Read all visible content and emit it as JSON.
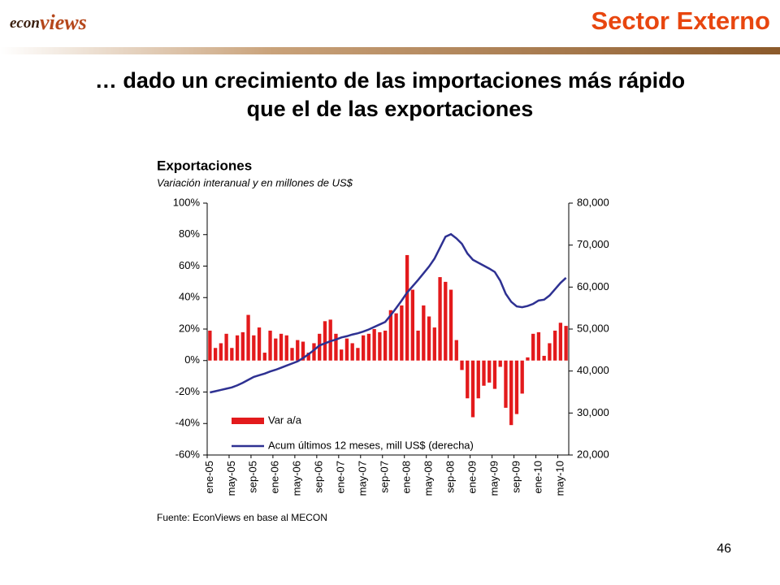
{
  "slide": {
    "logo": [
      "econ",
      "views"
    ],
    "section": "Sector Externo",
    "headline": [
      "… dado un crecimiento de las importaciones más rápido",
      "que el de las exportaciones"
    ],
    "page_number": "46"
  },
  "chart_data": {
    "type": "bar",
    "title": "Exportaciones",
    "subtitle": "Variación interanual y en millones de US$",
    "source": "Fuente: EconViews en base al MECON",
    "categories": [
      "ene-05",
      null,
      null,
      null,
      "may-05",
      null,
      null,
      null,
      "sep-05",
      null,
      null,
      null,
      "ene-06",
      null,
      null,
      null,
      "may-06",
      null,
      null,
      null,
      "sep-06",
      null,
      null,
      null,
      "ene-07",
      null,
      null,
      null,
      "may-07",
      null,
      null,
      null,
      "sep-07",
      null,
      null,
      null,
      "ene-08",
      null,
      null,
      null,
      "may-08",
      null,
      null,
      null,
      "sep-08",
      null,
      null,
      null,
      "ene-09",
      null,
      null,
      null,
      "may-09",
      null,
      null,
      null,
      "sep-09",
      null,
      null,
      null,
      "ene-10",
      null,
      null,
      null,
      "may-10",
      null
    ],
    "series": [
      {
        "name": "Var a/a",
        "type": "bar",
        "color": "#e31a1c",
        "values": [
          19,
          8,
          11,
          17,
          8,
          16,
          18,
          29,
          16,
          21,
          5,
          19,
          14,
          17,
          16,
          8,
          13,
          12,
          5,
          11,
          17,
          25,
          26,
          17,
          7,
          14,
          11,
          8,
          16,
          17,
          20,
          18,
          19,
          32,
          30,
          35,
          67,
          45,
          19,
          35,
          28,
          21,
          53,
          50,
          45,
          13,
          -6,
          -24,
          -36,
          -24,
          -16,
          -14,
          -18,
          -4,
          -30,
          -41,
          -34,
          -21,
          2,
          17,
          18,
          3,
          11,
          19,
          24,
          22
        ]
      },
      {
        "name": "Acum últimos 12 meses, mill US$ (derecha)",
        "type": "line",
        "axis": "y2",
        "color": "#2e3192",
        "values": [
          34900,
          35200,
          35500,
          35800,
          36100,
          36600,
          37200,
          37900,
          38600,
          39000,
          39400,
          39900,
          40300,
          40800,
          41300,
          41800,
          42300,
          43100,
          44000,
          45000,
          46100,
          46600,
          47100,
          47500,
          48000,
          48300,
          48700,
          49000,
          49400,
          49900,
          50500,
          51100,
          51700,
          53300,
          55000,
          56800,
          58700,
          60200,
          61700,
          63300,
          64900,
          66800,
          69400,
          72000,
          72600,
          71600,
          70300,
          68000,
          66500,
          65800,
          65100,
          64400,
          63600,
          61500,
          58400,
          56500,
          55400,
          55200,
          55500,
          56000,
          56800,
          57000,
          58000,
          59500,
          61000,
          62200
        ]
      }
    ],
    "ylim": [
      -60,
      100
    ],
    "yticks": [
      {
        "value": -60,
        "label": "-60%"
      },
      {
        "value": -40,
        "label": "-40%"
      },
      {
        "value": -20,
        "label": "-20%"
      },
      {
        "value": 0,
        "label": "0%"
      },
      {
        "value": 20,
        "label": "20%"
      },
      {
        "value": 40,
        "label": "40%"
      },
      {
        "value": 60,
        "label": "60%"
      },
      {
        "value": 80,
        "label": "80%"
      },
      {
        "value": 100,
        "label": "100%"
      }
    ],
    "y2lim": [
      20000,
      80000
    ],
    "y2ticks": [
      {
        "value": 20000,
        "label": "20,000"
      },
      {
        "value": 30000,
        "label": "30,000"
      },
      {
        "value": 40000,
        "label": "40,000"
      },
      {
        "value": 50000,
        "label": "50,000"
      },
      {
        "value": 60000,
        "label": "60,000"
      },
      {
        "value": 70000,
        "label": "70,000"
      },
      {
        "value": 80000,
        "label": "80,000"
      }
    ],
    "grid": false
  }
}
